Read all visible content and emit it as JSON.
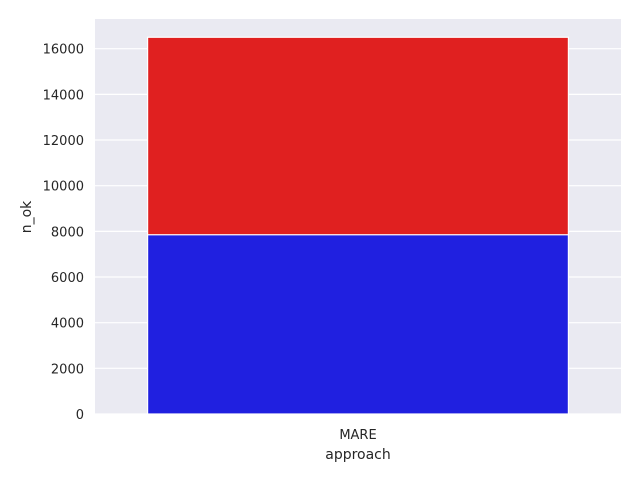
{
  "chart_data": {
    "type": "bar",
    "stacked": false,
    "overlaid": true,
    "categories": [
      "MARE"
    ],
    "series": [
      {
        "values": [
          16500
        ],
        "color": "#e02020"
      },
      {
        "values": [
          7850
        ],
        "color": "#2020e0"
      }
    ],
    "xlabel": "approach",
    "ylabel": "n_ok",
    "ylim": [
      0,
      17300
    ],
    "yticks": [
      0,
      2000,
      4000,
      6000,
      8000,
      10000,
      12000,
      14000,
      16000
    ],
    "grid": true,
    "background": "#eaeaf2",
    "grid_color": "#ffffff",
    "text_color": "#262626"
  }
}
